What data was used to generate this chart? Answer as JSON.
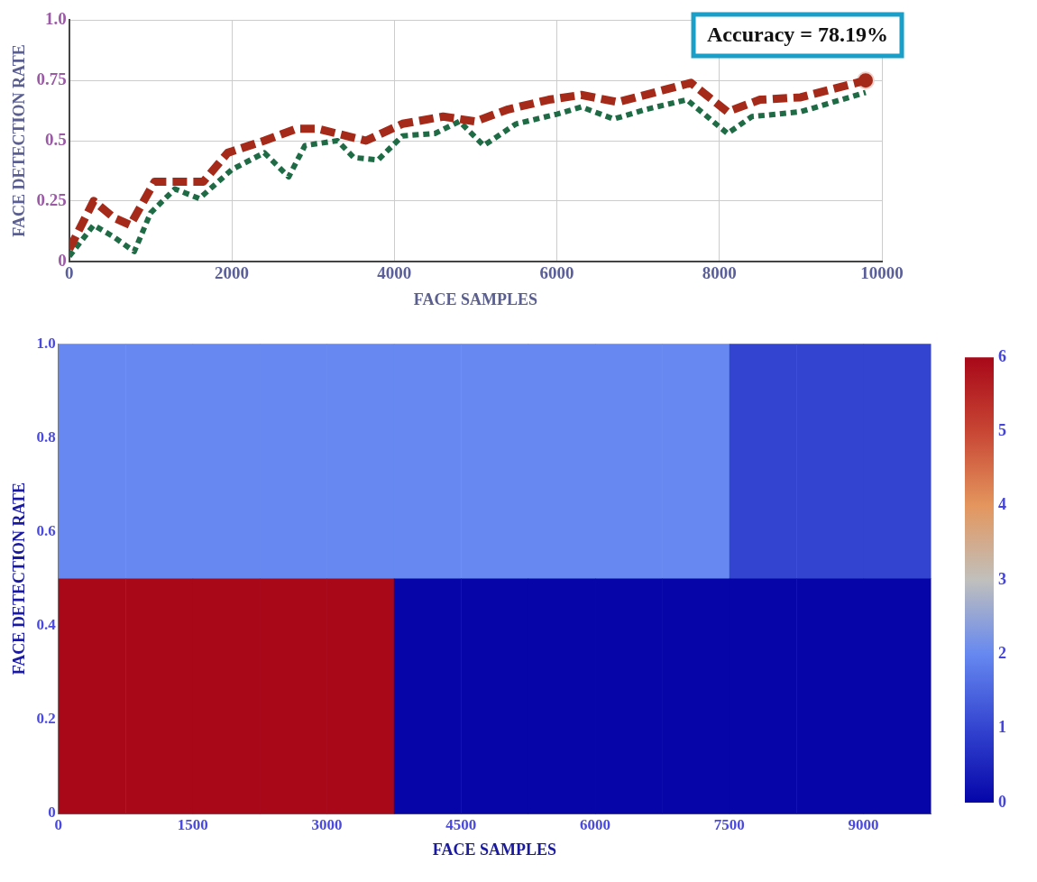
{
  "chart_data": [
    {
      "type": "line",
      "xlabel": "FACE SAMPLES",
      "ylabel": "FACE DETECTION RATE",
      "xlim": [
        0,
        10000
      ],
      "xticks": [
        0,
        2000,
        4000,
        6000,
        8000,
        10000
      ],
      "ylim": [
        0,
        1
      ],
      "yticks": [
        0,
        0.25,
        0.5,
        0.75,
        {
          "value": 1,
          "label": "1.0"
        }
      ],
      "grid": true,
      "legend": false,
      "annotations": [
        "Accuracy = 78.19%"
      ],
      "series": [
        {
          "color": "#a52a1a",
          "line_style": "dashed",
          "marker": "none",
          "x": [
            0,
            300,
            550,
            750,
            1050,
            1350,
            1650,
            1950,
            2400,
            2800,
            3050,
            3650,
            4100,
            4600,
            5000,
            5400,
            5900,
            6300,
            6750,
            7200,
            7650,
            8100,
            8500,
            9000,
            9800
          ],
          "values": [
            0.05,
            0.25,
            0.18,
            0.15,
            0.33,
            0.33,
            0.33,
            0.45,
            0.5,
            0.55,
            0.55,
            0.5,
            0.57,
            0.6,
            0.58,
            0.63,
            0.67,
            0.69,
            0.66,
            0.7,
            0.74,
            0.62,
            0.67,
            0.68,
            0.75
          ]
        },
        {
          "color": "#1e6b45",
          "line_style": "dotted",
          "marker": "none",
          "x": [
            0,
            300,
            550,
            800,
            1000,
            1300,
            1600,
            2000,
            2400,
            2700,
            2900,
            3300,
            3500,
            3800,
            4100,
            4500,
            4800,
            5100,
            5500,
            6000,
            6300,
            6700,
            7100,
            7600,
            8100,
            8400,
            9000,
            9800
          ],
          "values": [
            0.02,
            0.15,
            0.1,
            0.04,
            0.2,
            0.3,
            0.26,
            0.38,
            0.45,
            0.35,
            0.48,
            0.5,
            0.43,
            0.42,
            0.52,
            0.53,
            0.58,
            0.48,
            0.57,
            0.61,
            0.64,
            0.59,
            0.63,
            0.67,
            0.53,
            0.6,
            0.62,
            0.7
          ]
        },
        {
          "type": "scatter",
          "color": "#a52a1a",
          "marker": "circle",
          "x": [
            9800
          ],
          "values": [
            0.75
          ]
        }
      ]
    },
    {
      "type": "heatmap",
      "xlabel": "FACE SAMPLES",
      "ylabel": "FACE DETECTION RATE",
      "x": [
        375,
        1125,
        1875,
        2625,
        3375,
        4125,
        4875,
        5625,
        6375,
        7125,
        7875,
        8625,
        9375
      ],
      "xlim": [
        0,
        9750
      ],
      "xticks": [
        0,
        1500,
        3000,
        4500,
        6000,
        7500,
        9000
      ],
      "ylim": [
        0,
        1
      ],
      "yticks": [
        0,
        0.2,
        0.4,
        0.6,
        0.8,
        {
          "value": 1,
          "label": "1.0"
        }
      ],
      "cells": [
        [
          2,
          2,
          2,
          2,
          2,
          2,
          2,
          2,
          2,
          2,
          1,
          1,
          1
        ],
        [
          6,
          6,
          6,
          6,
          6,
          0,
          0,
          0,
          0,
          0,
          0,
          0,
          0
        ]
      ],
      "clim": [
        0,
        6
      ],
      "cticks": [
        0,
        1,
        2,
        3,
        4,
        5,
        6
      ]
    }
  ]
}
